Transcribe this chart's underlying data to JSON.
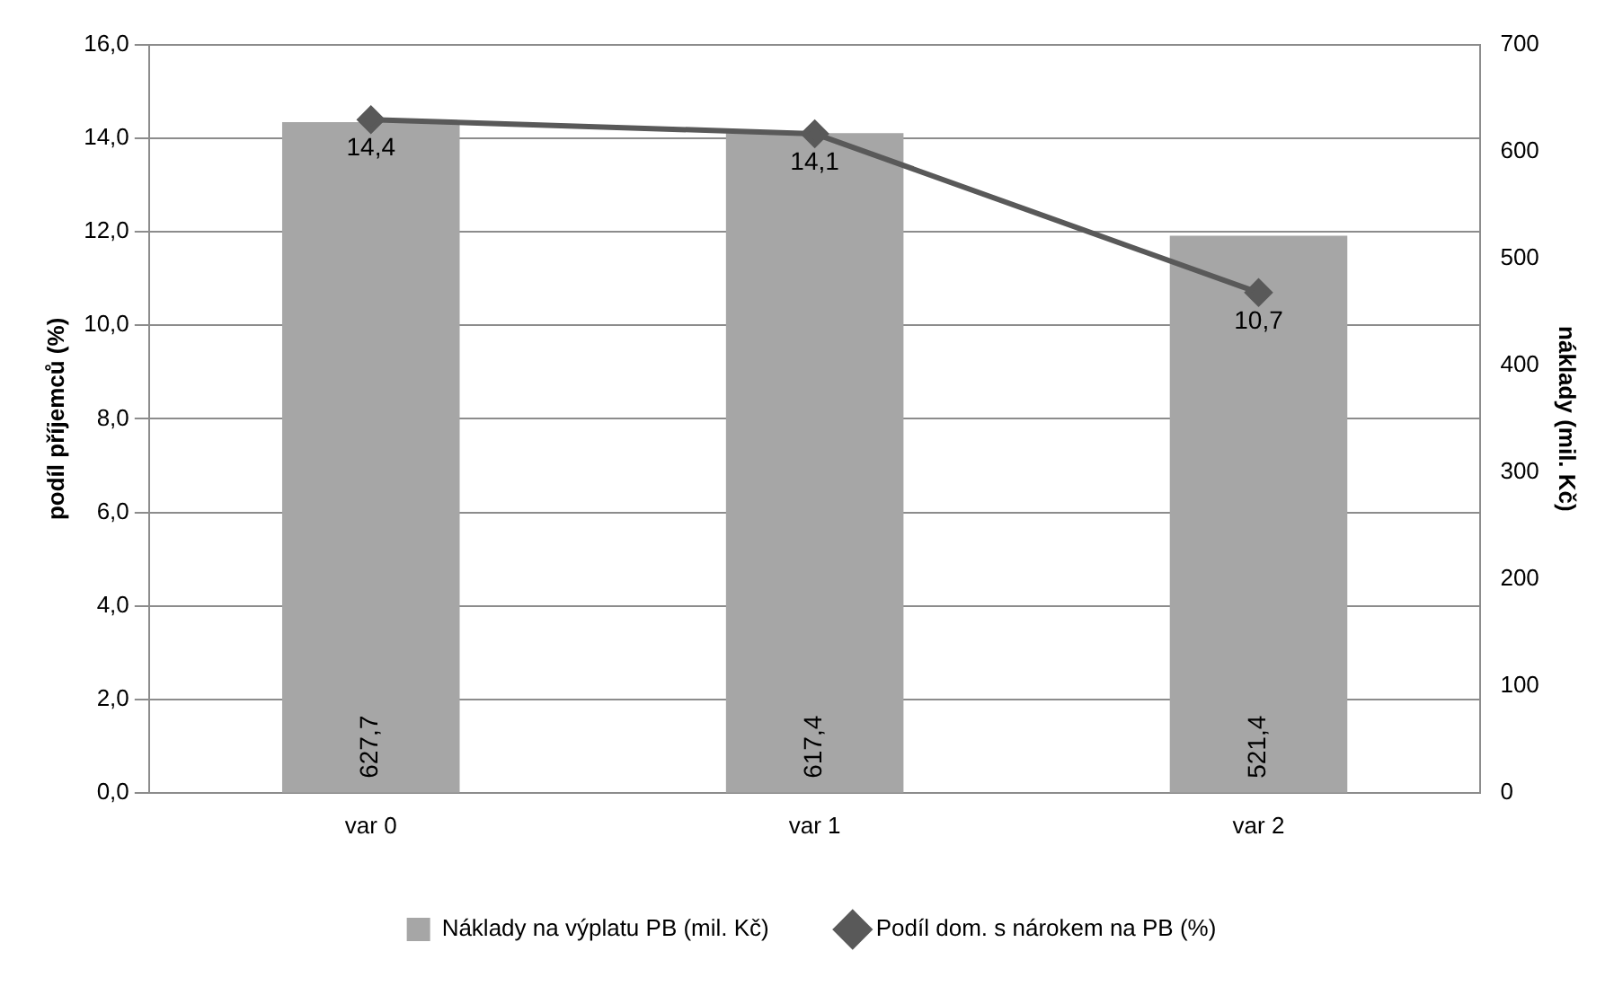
{
  "chart_data": {
    "type": "bar",
    "categories": [
      "var 0",
      "var 1",
      "var 2"
    ],
    "ylabel": "podíl příjemců (%)",
    "y2label": "náklady (mil. Kč)",
    "ylim": [
      0,
      16
    ],
    "yticks": [
      {
        "value": 0,
        "label": "0,0"
      },
      {
        "value": 2,
        "label": "2,0"
      },
      {
        "value": 4,
        "label": "4,0"
      },
      {
        "value": 6,
        "label": "6,0"
      },
      {
        "value": 8,
        "label": "8,0"
      },
      {
        "value": 10,
        "label": "10,0"
      },
      {
        "value": 12,
        "label": "12,0"
      },
      {
        "value": 14,
        "label": "14,0"
      },
      {
        "value": 16,
        "label": "16,0"
      }
    ],
    "y2lim": [
      0,
      700
    ],
    "y2ticks": [
      0,
      100,
      200,
      300,
      400,
      500,
      600,
      700
    ],
    "grid": "y",
    "legend": "bottom",
    "series": [
      {
        "name": "Náklady na výplatu PB (mil. Kč)",
        "axis": "y2",
        "color": "#a6a6a6",
        "values": [
          627.7,
          617.4,
          521.4
        ],
        "value_labels": [
          "627,7",
          "617,4",
          "521,4"
        ]
      },
      {
        "name": "Podíl dom. s nárokem na PB (%)",
        "type": "line",
        "axis": "y",
        "color": "#595959",
        "marker": "diamond",
        "values": [
          14.4,
          14.1,
          10.7
        ],
        "value_labels": [
          "14,4",
          "14,1",
          "10,7"
        ]
      }
    ]
  }
}
